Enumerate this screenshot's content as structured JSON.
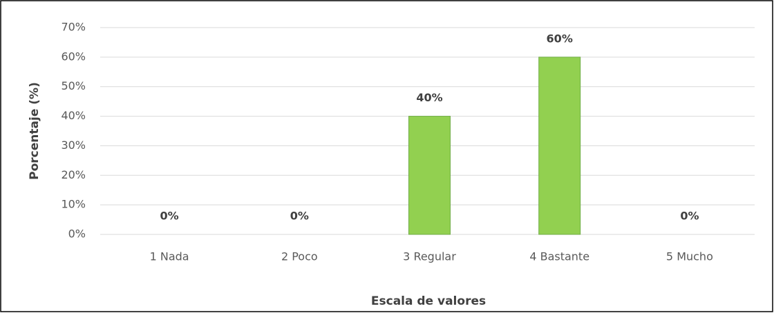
{
  "chart_data": {
    "type": "bar",
    "x_label": "Escala  de valores",
    "y_label": "Porcentaje (%)",
    "categories": [
      "1 Nada",
      "2 Poco",
      "3 Regular",
      "4 Bastante",
      "5 Mucho"
    ],
    "values": [
      0,
      0,
      40,
      60,
      0
    ],
    "value_labels": [
      "0%",
      "0%",
      "40%",
      "60%",
      "0%"
    ],
    "color": "#92d050",
    "ylim": [
      0,
      70
    ],
    "yticks": [
      {
        "value": 0,
        "label": "0%"
      },
      {
        "value": 10,
        "label": "10%"
      },
      {
        "value": 20,
        "label": "20%"
      },
      {
        "value": 30,
        "label": "30%"
      },
      {
        "value": 40,
        "label": "40%"
      },
      {
        "value": 50,
        "label": "50%"
      },
      {
        "value": 60,
        "label": "60%"
      },
      {
        "value": 70,
        "label": "70%"
      }
    ],
    "grid": true
  }
}
